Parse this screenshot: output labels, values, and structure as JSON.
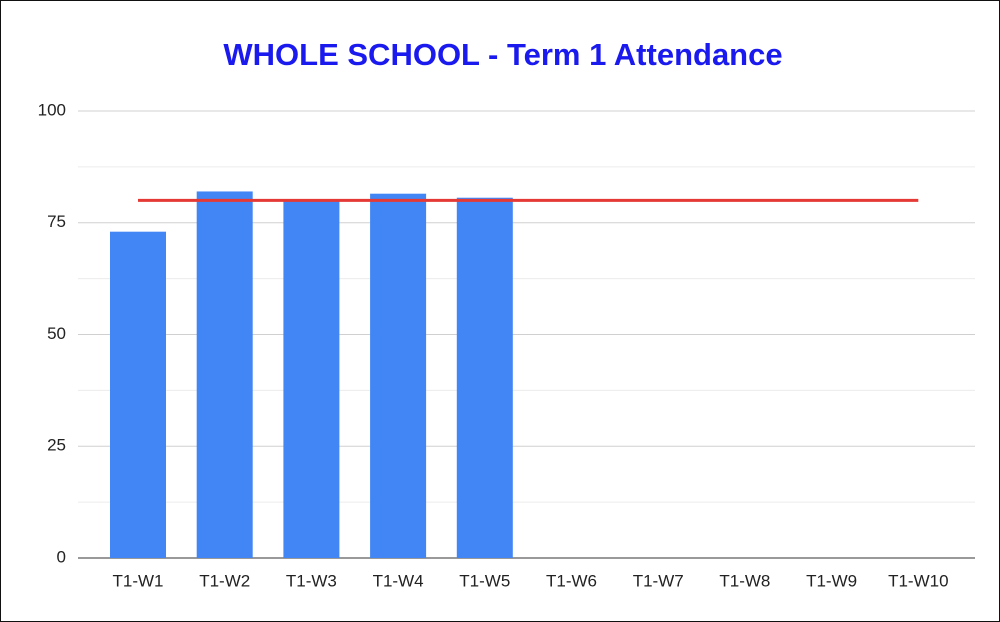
{
  "chart_data": {
    "type": "bar",
    "title": "WHOLE SCHOOL - Term 1 Attendance",
    "categories": [
      "T1-W1",
      "T1-W2",
      "T1-W3",
      "T1-W4",
      "T1-W5",
      "T1-W6",
      "T1-W7",
      "T1-W8",
      "T1-W9",
      "T1-W10"
    ],
    "series": [
      {
        "type": "bar",
        "color": "#4285f4",
        "values": [
          73,
          82,
          80,
          81.5,
          80.6,
          null,
          null,
          null,
          null,
          null
        ]
      },
      {
        "type": "line",
        "color": "#e53935",
        "values": [
          80,
          80,
          80,
          80,
          80,
          80,
          80,
          80,
          80,
          80
        ]
      }
    ],
    "ylim": [
      0,
      100
    ],
    "yticks": [
      0,
      25,
      50,
      75,
      100
    ],
    "grid": true
  }
}
